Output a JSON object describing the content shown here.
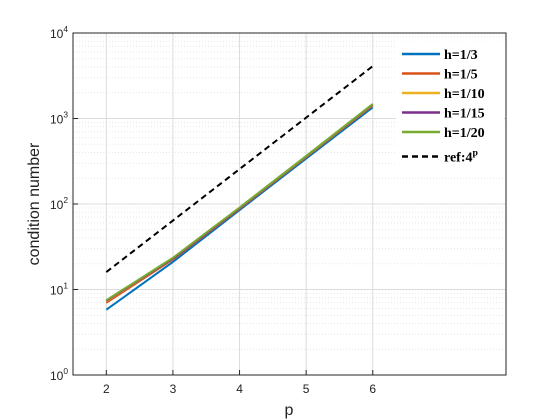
{
  "chart_data": {
    "type": "line",
    "x": [
      2,
      3,
      4,
      5,
      6
    ],
    "xlabel": "p",
    "ylabel": "condition number",
    "xlim": [
      1.5,
      8
    ],
    "xticks": [
      2,
      3,
      4,
      5,
      6
    ],
    "ylim": [
      1,
      10000
    ],
    "log_y": true,
    "grid": true,
    "legend": "upper right",
    "yticks": [
      {
        "value": 1,
        "label": "10^0"
      },
      {
        "value": 10,
        "label": "10^1"
      },
      {
        "value": 100,
        "label": "10^2"
      },
      {
        "value": 1000,
        "label": "10^3"
      },
      {
        "value": 10000,
        "label": "10^4"
      }
    ],
    "series": [
      {
        "name": "h=1/3",
        "color": "#0072bd",
        "values": [
          5.8,
          21,
          85,
          340,
          1350
        ]
      },
      {
        "name": "h=1/5",
        "color": "#d95319",
        "values": [
          7,
          22.5,
          88,
          355,
          1420
        ]
      },
      {
        "name": "h=1/10",
        "color": "#edb120",
        "values": [
          7.3,
          23,
          90,
          360,
          1450
        ]
      },
      {
        "name": "h=1/15",
        "color": "#7e2f8e",
        "values": [
          7.4,
          23,
          90,
          362,
          1460
        ]
      },
      {
        "name": "h=1/20",
        "color": "#77ac30",
        "values": [
          7.5,
          23.5,
          91,
          365,
          1480
        ]
      },
      {
        "name": "ref:4^p",
        "color": "#000000",
        "dashed": true,
        "values": [
          16,
          64,
          256,
          1024,
          4096
        ]
      }
    ]
  }
}
